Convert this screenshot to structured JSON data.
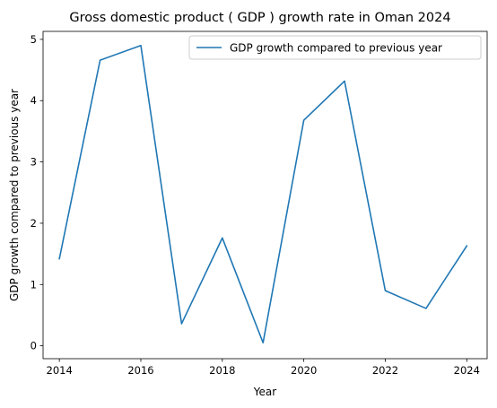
{
  "chart_data": {
    "type": "line",
    "title": "Gross domestic product ( GDP ) growth rate in Oman 2024",
    "xlabel": "Year",
    "ylabel": "GDP growth compared to previous year",
    "xlim": [
      2013.6,
      2024.5
    ],
    "ylim": [
      -0.21,
      5.13
    ],
    "x_ticks": [
      2014,
      2016,
      2018,
      2020,
      2022,
      2024
    ],
    "y_ticks": [
      0,
      1,
      2,
      3,
      4,
      5
    ],
    "grid": false,
    "legend_position": "top-right",
    "series": [
      {
        "name": "GDP growth compared to previous year",
        "color": "#1f77b4",
        "x": [
          2014,
          2015,
          2016,
          2017,
          2018,
          2019,
          2020,
          2021,
          2022,
          2023,
          2024
        ],
        "y": [
          1.42,
          4.66,
          4.9,
          0.36,
          1.76,
          0.05,
          3.68,
          4.32,
          0.9,
          0.61,
          1.63
        ]
      }
    ]
  }
}
